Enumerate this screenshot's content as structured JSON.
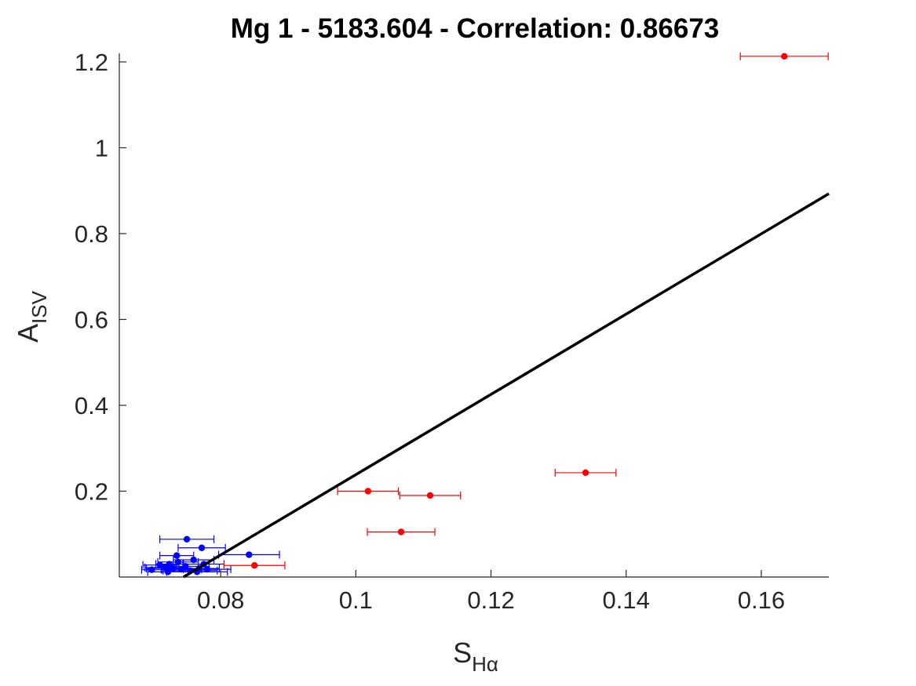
{
  "chart_data": {
    "type": "scatter",
    "title": "Mg 1 - 5183.604 - Correlation: 0.86673",
    "xlabel": {
      "main": "S",
      "sub": "Hα"
    },
    "ylabel": {
      "main": "A",
      "sub": "ISV"
    },
    "xlim": [
      0.065,
      0.17
    ],
    "ylim": [
      0.0,
      1.22
    ],
    "x_ticks": [
      0.08,
      0.1,
      0.12,
      0.14,
      0.16
    ],
    "x_tick_labels": [
      "0.08",
      "0.1",
      "0.12",
      "0.14",
      "0.16"
    ],
    "y_ticks": [
      0.2,
      0.4,
      0.6,
      0.8,
      1.0,
      1.2
    ],
    "y_tick_labels": [
      "0.2",
      "0.4",
      "0.6",
      "0.8",
      "1",
      "1.2"
    ],
    "grid": false,
    "box": "left-bottom",
    "fit_line": {
      "color": "#000000",
      "x": [
        0.0745,
        0.17
      ],
      "y": [
        0.0,
        0.893
      ]
    },
    "series": [
      {
        "color": "#0000ff",
        "points": [
          {
            "x": 0.0698,
            "y": 0.017,
            "xerr": 0.0015
          },
          {
            "x": 0.071,
            "y": 0.028,
            "xerr": 0.0025
          },
          {
            "x": 0.0718,
            "y": 0.022,
            "xerr": 0.003
          },
          {
            "x": 0.0722,
            "y": 0.012,
            "xerr": 0.003
          },
          {
            "x": 0.0724,
            "y": 0.03,
            "xerr": 0.002
          },
          {
            "x": 0.073,
            "y": 0.02,
            "xerr": 0.004
          },
          {
            "x": 0.0735,
            "y": 0.05,
            "xerr": 0.0025
          },
          {
            "x": 0.0737,
            "y": 0.035,
            "xerr": 0.003
          },
          {
            "x": 0.0742,
            "y": 0.018,
            "xerr": 0.003
          },
          {
            "x": 0.0748,
            "y": 0.025,
            "xerr": 0.0035
          },
          {
            "x": 0.075,
            "y": 0.088,
            "xerr": 0.004
          },
          {
            "x": 0.0755,
            "y": 0.015,
            "xerr": 0.004
          },
          {
            "x": 0.076,
            "y": 0.04,
            "xerr": 0.003
          },
          {
            "x": 0.0765,
            "y": 0.012,
            "xerr": 0.0045
          },
          {
            "x": 0.0768,
            "y": 0.02,
            "xerr": 0.003
          },
          {
            "x": 0.0772,
            "y": 0.068,
            "xerr": 0.0035
          },
          {
            "x": 0.0775,
            "y": 0.03,
            "xerr": 0.003
          },
          {
            "x": 0.078,
            "y": 0.018,
            "xerr": 0.0035
          },
          {
            "x": 0.0842,
            "y": 0.052,
            "xerr": 0.0045
          }
        ]
      },
      {
        "color": "#ff0000",
        "points": [
          {
            "x": 0.085,
            "y": 0.027,
            "xerr": 0.0045
          },
          {
            "x": 0.1018,
            "y": 0.2,
            "xerr": 0.0045
          },
          {
            "x": 0.1067,
            "y": 0.105,
            "xerr": 0.005
          },
          {
            "x": 0.111,
            "y": 0.19,
            "xerr": 0.0045
          },
          {
            "x": 0.134,
            "y": 0.243,
            "xerr": 0.0045
          },
          {
            "x": 0.1634,
            "y": 1.213,
            "xerr": 0.0065
          }
        ]
      }
    ]
  }
}
